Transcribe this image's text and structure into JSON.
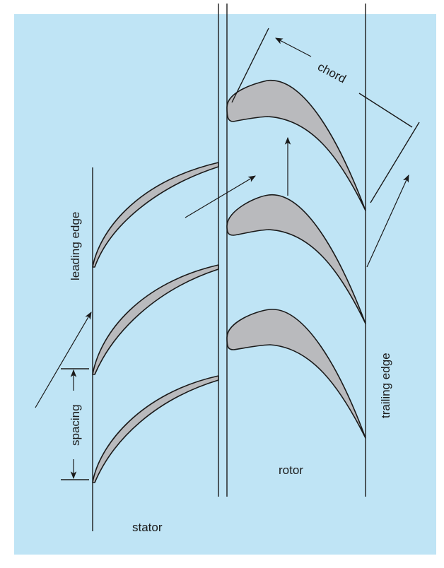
{
  "labels": {
    "leading_edge": "leading edge",
    "spacing": "spacing",
    "stator": "stator",
    "rotor": "rotor",
    "chord": "chord",
    "trailing_edge": "trailing edge"
  },
  "colors": {
    "background": "#bfe4f5",
    "blade_fill": "#b9babd",
    "stroke": "#1a1a1a"
  }
}
